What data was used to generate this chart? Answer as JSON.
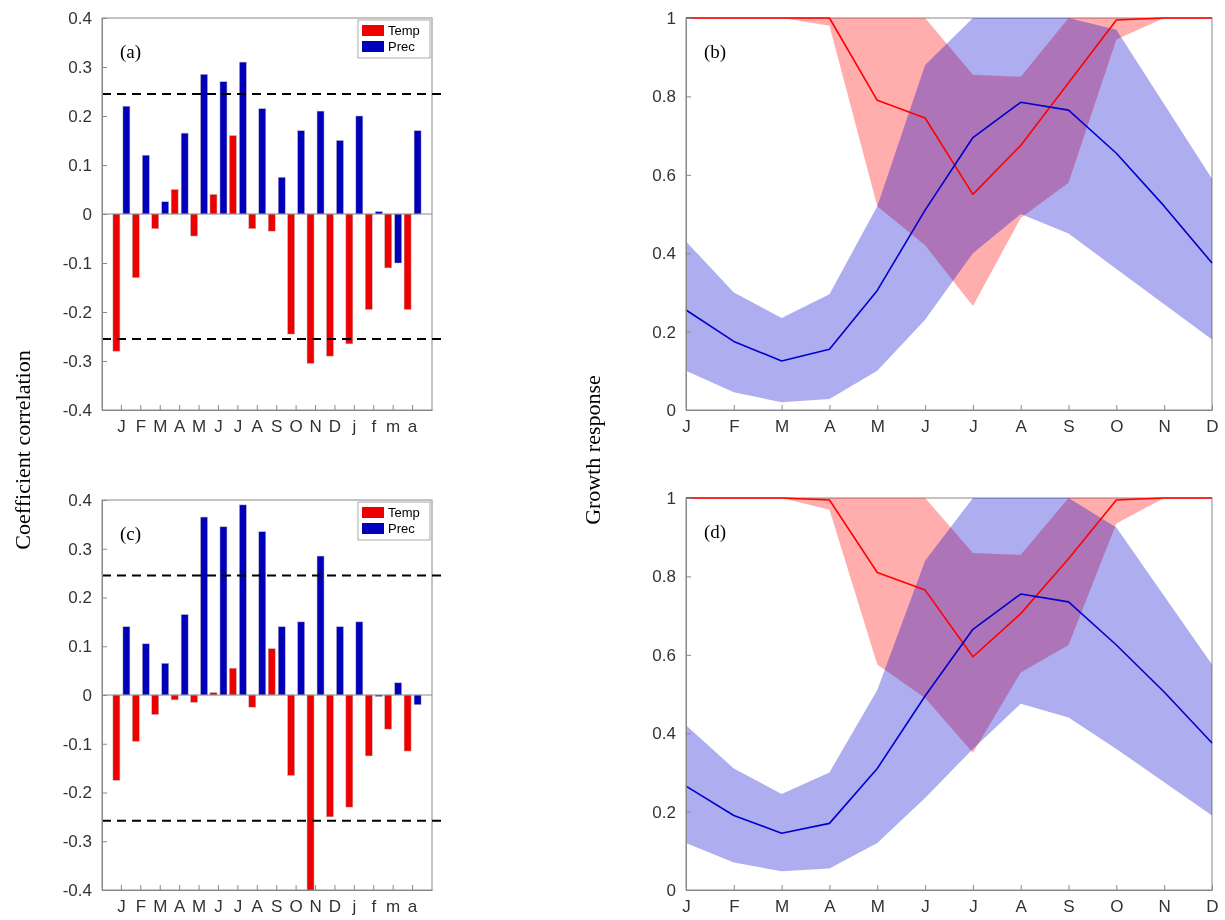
{
  "chart_data": [
    {
      "type": "bar",
      "title": "(a)",
      "ylabel": "Coefficient correlation",
      "categories": [
        "J",
        "F",
        "M",
        "A",
        "M",
        "J",
        "J",
        "A",
        "S",
        "O",
        "N",
        "D",
        "j",
        "f",
        "m",
        "a"
      ],
      "series": [
        {
          "name": "Temp",
          "color": "#ee0000",
          "values": [
            -0.28,
            -0.13,
            -0.03,
            0.05,
            -0.045,
            0.04,
            0.16,
            -0.03,
            -0.035,
            -0.245,
            -0.305,
            -0.29,
            -0.265,
            -0.195,
            -0.11,
            -0.195
          ]
        },
        {
          "name": "Prec",
          "color": "#0000bb",
          "values": [
            0.22,
            0.12,
            0.025,
            0.165,
            0.285,
            0.27,
            0.31,
            0.215,
            0.075,
            0.17,
            0.21,
            0.15,
            0.2,
            0.005,
            -0.1,
            0.17
          ]
        }
      ],
      "ylim": [
        -0.4,
        0.4
      ],
      "yticks": [
        -0.4,
        -0.3,
        -0.2,
        -0.1,
        0,
        0.1,
        0.2,
        0.3,
        0.4
      ],
      "legend": "top right",
      "ref_lines": [
        {
          "axis": "y",
          "value": 0.245,
          "color": "#000000",
          "line_style": "dashed"
        },
        {
          "axis": "y",
          "value": -0.255,
          "color": "#000000",
          "line_style": "dashed"
        }
      ]
    },
    {
      "type": "line",
      "title": "(b)",
      "ylabel": "Growth response",
      "categories": [
        "J",
        "F",
        "M",
        "A",
        "M",
        "J",
        "J",
        "A",
        "S",
        "O",
        "N",
        "D"
      ],
      "series": [
        {
          "color": "#ff0000",
          "values": [
            1,
            1,
            1,
            1,
            0.79,
            0.745,
            0.55,
            0.675,
            0.835,
            0.995,
            1,
            1
          ],
          "lower": [
            1,
            1,
            1,
            0.98,
            0.52,
            0.42,
            0.265,
            0.49,
            0.58,
            0.945,
            1,
            1
          ],
          "upper": [
            1,
            1,
            1,
            1,
            1,
            1,
            0.855,
            0.85,
            1,
            1,
            1,
            1
          ]
        },
        {
          "color": "#0000cc",
          "values": [
            0.255,
            0.175,
            0.125,
            0.155,
            0.305,
            0.51,
            0.695,
            0.785,
            0.765,
            0.655,
            0.52,
            0.375
          ],
          "lower": [
            0.1,
            0.045,
            0.02,
            0.028,
            0.1,
            0.23,
            0.4,
            0.5,
            0.45,
            0.36,
            0.27,
            0.18
          ],
          "upper": [
            0.43,
            0.3,
            0.235,
            0.295,
            0.52,
            0.88,
            1,
            1,
            1,
            0.97,
            0.78,
            0.59
          ]
        }
      ],
      "ylim": [
        0,
        1
      ],
      "yticks": [
        0,
        0.2,
        0.4,
        0.6,
        0.8,
        1
      ]
    },
    {
      "type": "bar",
      "title": "(c)",
      "categories": [
        "J",
        "F",
        "M",
        "A",
        "M",
        "J",
        "J",
        "A",
        "S",
        "O",
        "N",
        "D",
        "j",
        "f",
        "m",
        "a"
      ],
      "series": [
        {
          "name": "Temp",
          "color": "#ee0000",
          "values": [
            -0.175,
            -0.095,
            -0.04,
            -0.01,
            -0.015,
            0.005,
            0.055,
            -0.025,
            0.095,
            -0.165,
            -0.4,
            -0.25,
            -0.23,
            -0.125,
            -0.07,
            -0.115
          ]
        },
        {
          "name": "Prec",
          "color": "#0000bb",
          "values": [
            0.14,
            0.105,
            0.065,
            0.165,
            0.365,
            0.345,
            0.39,
            0.335,
            0.14,
            0.15,
            0.285,
            0.14,
            0.15,
            -0.003,
            0.025,
            -0.02
          ]
        }
      ],
      "ylim": [
        -0.4,
        0.4
      ],
      "yticks": [
        -0.4,
        -0.3,
        -0.2,
        -0.1,
        0,
        0.1,
        0.2,
        0.3,
        0.4
      ],
      "legend": "top right",
      "ref_lines": [
        {
          "axis": "y",
          "value": 0.245,
          "color": "#000000",
          "line_style": "dashed"
        },
        {
          "axis": "y",
          "value": -0.258,
          "color": "#000000",
          "line_style": "dashed"
        }
      ]
    },
    {
      "type": "line",
      "title": "(d)",
      "categories": [
        "J",
        "F",
        "M",
        "A",
        "M",
        "J",
        "J",
        "A",
        "S",
        "O",
        "N",
        "D"
      ],
      "series": [
        {
          "color": "#ff0000",
          "values": [
            1,
            1,
            1,
            0.995,
            0.81,
            0.765,
            0.595,
            0.705,
            0.845,
            0.995,
            1,
            1
          ],
          "lower": [
            1,
            1,
            1,
            0.97,
            0.575,
            0.49,
            0.35,
            0.555,
            0.625,
            0.935,
            1,
            1
          ],
          "upper": [
            1,
            1,
            1,
            1,
            1,
            1,
            0.86,
            0.855,
            1,
            1,
            1,
            1
          ]
        },
        {
          "color": "#0000cc",
          "values": [
            0.265,
            0.19,
            0.145,
            0.17,
            0.31,
            0.495,
            0.665,
            0.755,
            0.735,
            0.625,
            0.505,
            0.375
          ],
          "lower": [
            0.12,
            0.07,
            0.048,
            0.055,
            0.12,
            0.235,
            0.36,
            0.475,
            0.44,
            0.36,
            0.275,
            0.19
          ],
          "upper": [
            0.42,
            0.31,
            0.245,
            0.3,
            0.51,
            0.84,
            1,
            1,
            1,
            0.925,
            0.75,
            0.575
          ]
        }
      ],
      "ylim": [
        0,
        1
      ],
      "yticks": [
        0,
        0.2,
        0.4,
        0.6,
        0.8,
        1
      ]
    }
  ]
}
